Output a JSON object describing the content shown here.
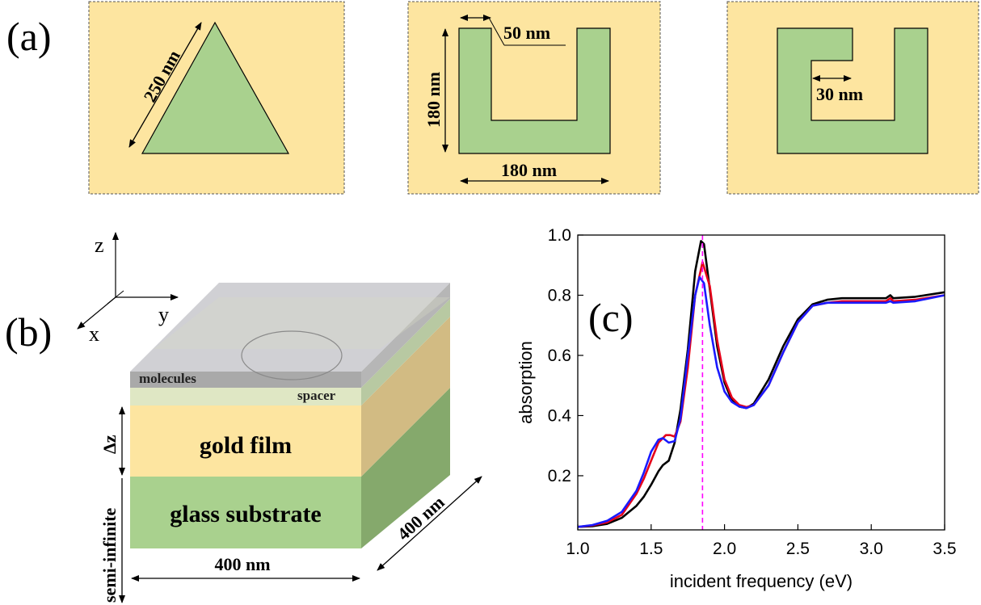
{
  "panel_a": {
    "label": "(a)",
    "triangle": {
      "side_label": "250 nm"
    },
    "u_shape": {
      "top_label": "50 nm",
      "height_label": "180 nm",
      "width_label": "180 nm"
    },
    "c_shape": {
      "gap_label": "30 nm"
    }
  },
  "panel_b": {
    "label": "(b)",
    "axes": {
      "z": "z",
      "y": "y",
      "x": "x"
    },
    "layers": {
      "molecules": "molecules",
      "spacer": "spacer",
      "gold": "gold film",
      "glass": "glass substrate"
    },
    "dims": {
      "delta_z": "Δz",
      "semi_infinite": "semi-infinite",
      "width": "400 nm",
      "depth": "400 nm"
    }
  },
  "panel_c": {
    "label": "(c)"
  },
  "colors": {
    "gold": "#fde5a0",
    "green": "#a9d18e",
    "green_dark": "#85a96c",
    "gold_dark": "#d2bb83",
    "gray_top": "#d0d0d0",
    "gray_side": "#a9a9a9",
    "black": "#000000",
    "red": "#e6001a",
    "blue": "#1a1aff",
    "magenta": "#ff00ff"
  },
  "chart_data": {
    "type": "line",
    "xlabel": "incident frequency (eV)",
    "ylabel": "absorption",
    "xlim": [
      1.0,
      3.5
    ],
    "ylim": [
      0.02,
      1.0
    ],
    "xticks": [
      "1.0",
      "1.5",
      "2.0",
      "2.5",
      "3.0",
      "3.5"
    ],
    "yticks": [
      "0.2",
      "0.4",
      "0.6",
      "0.8",
      "1.0"
    ],
    "vline_x": 1.85,
    "series": [
      {
        "color": "#000000",
        "x": [
          1.0,
          1.1,
          1.2,
          1.3,
          1.4,
          1.45,
          1.5,
          1.55,
          1.58,
          1.62,
          1.66,
          1.7,
          1.75,
          1.8,
          1.84,
          1.86,
          1.9,
          1.95,
          2.0,
          2.05,
          2.1,
          2.15,
          2.2,
          2.3,
          2.4,
          2.5,
          2.6,
          2.7,
          2.8,
          3.0,
          3.1,
          3.13,
          3.15,
          3.3,
          3.5
        ],
        "y": [
          0.03,
          0.032,
          0.04,
          0.06,
          0.1,
          0.13,
          0.17,
          0.215,
          0.235,
          0.25,
          0.31,
          0.42,
          0.62,
          0.88,
          0.98,
          0.97,
          0.82,
          0.63,
          0.51,
          0.45,
          0.43,
          0.425,
          0.44,
          0.52,
          0.63,
          0.72,
          0.77,
          0.785,
          0.79,
          0.79,
          0.79,
          0.8,
          0.79,
          0.795,
          0.81
        ]
      },
      {
        "color": "#e6001a",
        "x": [
          1.0,
          1.1,
          1.2,
          1.3,
          1.4,
          1.45,
          1.5,
          1.55,
          1.6,
          1.63,
          1.66,
          1.7,
          1.75,
          1.8,
          1.85,
          1.9,
          1.95,
          2.0,
          2.05,
          2.1,
          2.15,
          2.2,
          2.3,
          2.4,
          2.5,
          2.6,
          2.7,
          2.8,
          3.0,
          3.1,
          3.13,
          3.15,
          3.3,
          3.5
        ],
        "y": [
          0.03,
          0.035,
          0.045,
          0.07,
          0.14,
          0.19,
          0.25,
          0.31,
          0.335,
          0.335,
          0.33,
          0.38,
          0.56,
          0.8,
          0.91,
          0.83,
          0.65,
          0.52,
          0.46,
          0.435,
          0.428,
          0.435,
          0.5,
          0.61,
          0.71,
          0.765,
          0.775,
          0.78,
          0.78,
          0.78,
          0.79,
          0.78,
          0.785,
          0.8
        ]
      },
      {
        "color": "#1a1aff",
        "x": [
          1.0,
          1.1,
          1.2,
          1.3,
          1.4,
          1.45,
          1.5,
          1.55,
          1.58,
          1.62,
          1.66,
          1.7,
          1.75,
          1.8,
          1.83,
          1.86,
          1.9,
          1.95,
          2.0,
          2.05,
          2.1,
          2.15,
          2.2,
          2.3,
          2.4,
          2.5,
          2.6,
          2.7,
          2.8,
          3.0,
          3.1,
          3.13,
          3.15,
          3.3,
          3.5
        ],
        "y": [
          0.03,
          0.036,
          0.05,
          0.08,
          0.15,
          0.21,
          0.28,
          0.32,
          0.325,
          0.31,
          0.315,
          0.39,
          0.6,
          0.8,
          0.86,
          0.84,
          0.7,
          0.56,
          0.48,
          0.445,
          0.43,
          0.425,
          0.435,
          0.5,
          0.61,
          0.71,
          0.765,
          0.775,
          0.775,
          0.775,
          0.775,
          0.78,
          0.775,
          0.78,
          0.8
        ]
      }
    ]
  }
}
